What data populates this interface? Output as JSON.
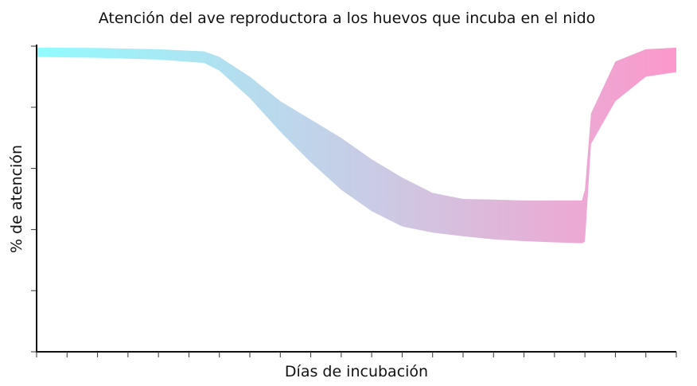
{
  "chart_data": {
    "type": "area",
    "title": "Atención del ave reproductora a los huevos que incuba en el nido",
    "xlabel": "Días de incubación",
    "ylabel": "% de atención",
    "xlim": [
      0,
      21
    ],
    "ylim": [
      0,
      100
    ],
    "x_tick_count": 22,
    "y_tick_count": 6,
    "x_tick_labels": [],
    "y_tick_labels": [],
    "grid": false,
    "legend": "none",
    "band": {
      "x": [
        0,
        2,
        4,
        5.5,
        6,
        7,
        8,
        9,
        10,
        11,
        12,
        13,
        14,
        15,
        16,
        17,
        17.9,
        18,
        18.2,
        19,
        20,
        21
      ],
      "upper": [
        99.5,
        99.4,
        99,
        98.3,
        96.5,
        90,
        82,
        76,
        70,
        63,
        57,
        52,
        50,
        49.8,
        49.5,
        49.5,
        49.5,
        53,
        78,
        95,
        99,
        99.5
      ],
      "lower": [
        96.5,
        96.2,
        95.6,
        94.5,
        92,
        83,
        72,
        62,
        53,
        46,
        41,
        39,
        37.8,
        36.8,
        36.2,
        35.8,
        35.5,
        36,
        68,
        82,
        90,
        91.5
      ]
    },
    "gradient": {
      "start": "#92fbfe",
      "middle": "#d2c4e1",
      "end": "#fc98cb"
    }
  }
}
